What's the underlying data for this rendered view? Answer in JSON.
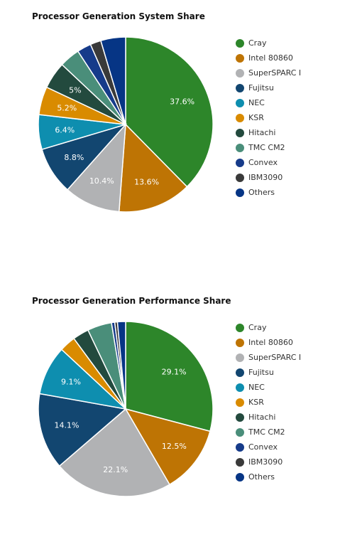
{
  "chart_data": [
    {
      "type": "pie",
      "title": "Processor Generation System Share",
      "legend": "right",
      "categories": [
        "Cray",
        "Intel 80860",
        "SuperSPARC I",
        "Fujitsu",
        "NEC",
        "KSR",
        "Hitachi",
        "TMC CM2",
        "Convex",
        "IBM3090",
        "Others"
      ],
      "values": [
        37.6,
        13.6,
        10.4,
        8.8,
        6.4,
        5.2,
        5.0,
        3.8,
        2.6,
        2.0,
        4.6
      ],
      "data_labels": [
        "37.6%",
        "13.6%",
        "10.4%",
        "8.8%",
        "6.4%",
        "5.2%",
        "5%",
        "",
        "",
        "",
        ""
      ],
      "colors": [
        "#2d862a",
        "#be7404",
        "#b1b2b4",
        "#124670",
        "#0e8eaf",
        "#d98b00",
        "#234a3e",
        "#4a8e7a",
        "#163b8a",
        "#3a3a3a",
        "#063585"
      ]
    },
    {
      "type": "pie",
      "title": "Processor Generation Performance Share",
      "legend": "right",
      "categories": [
        "Cray",
        "Intel 80860",
        "SuperSPARC I",
        "Fujitsu",
        "NEC",
        "KSR",
        "Hitachi",
        "TMC CM2",
        "Convex",
        "IBM3090",
        "Others"
      ],
      "values": [
        29.1,
        12.5,
        22.1,
        14.1,
        9.1,
        3.0,
        3.0,
        4.5,
        0.6,
        0.5,
        1.5
      ],
      "data_labels": [
        "29.1%",
        "12.5%",
        "22.1%",
        "14.1%",
        "9.1%",
        "",
        "",
        "",
        "",
        "",
        ""
      ],
      "colors": [
        "#2d862a",
        "#be7404",
        "#b1b2b4",
        "#124670",
        "#0e8eaf",
        "#d98b00",
        "#234a3e",
        "#4a8e7a",
        "#163b8a",
        "#3a3a3a",
        "#063585"
      ]
    }
  ]
}
